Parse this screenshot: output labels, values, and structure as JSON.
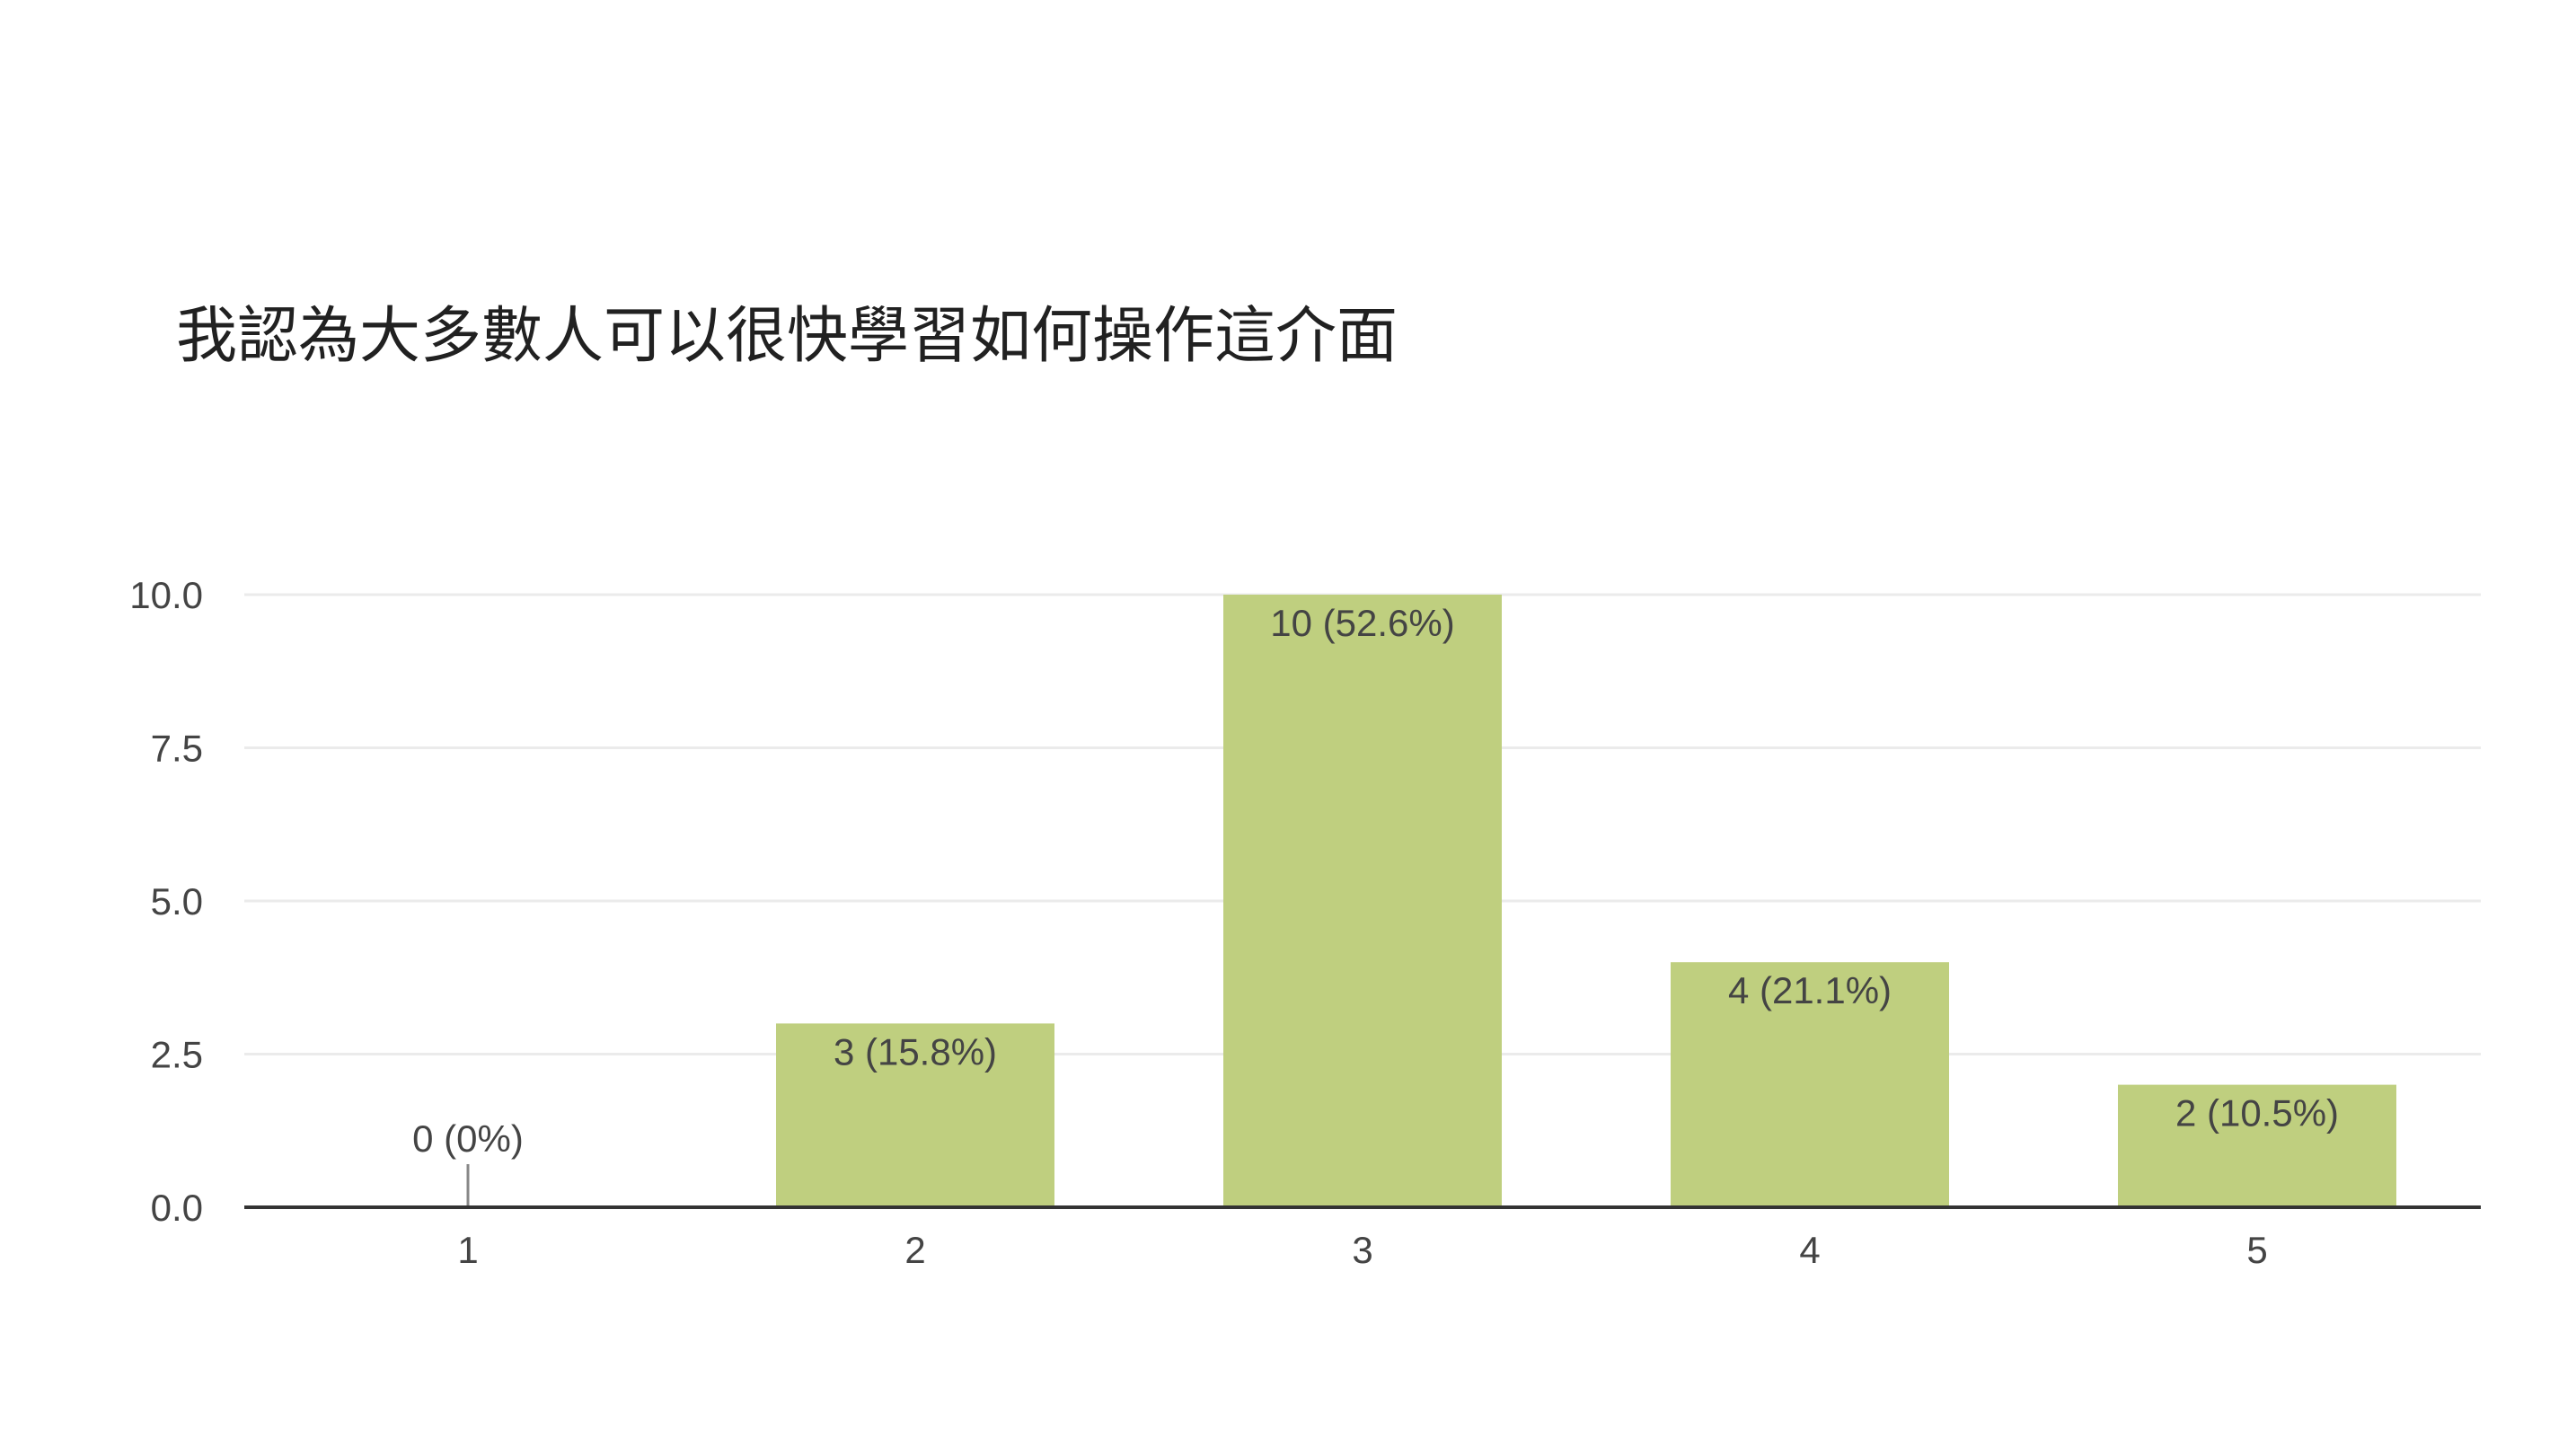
{
  "chart_data": {
    "type": "bar",
    "title": "我認為大多數人可以很快學習如何操作這介面",
    "categories": [
      "1",
      "2",
      "3",
      "4",
      "5"
    ],
    "values": [
      0,
      3,
      10,
      4,
      2
    ],
    "data_labels": [
      "0 (0%)",
      "3 (15.8%)",
      "10 (52.6%)",
      "4 (21.1%)",
      "2 (10.5%)"
    ],
    "ylim": [
      0,
      10
    ],
    "yticks": [
      "0.0",
      "2.5",
      "5.0",
      "7.5",
      "10.0"
    ],
    "ytick_values": [
      0,
      2.5,
      5,
      7.5,
      10
    ],
    "grid": true,
    "xlabel": "",
    "ylabel": "",
    "colors": {
      "bar": "#bfcf7f",
      "gridline": "#ebebeb",
      "axis": "#333333",
      "label": "#444444"
    }
  }
}
